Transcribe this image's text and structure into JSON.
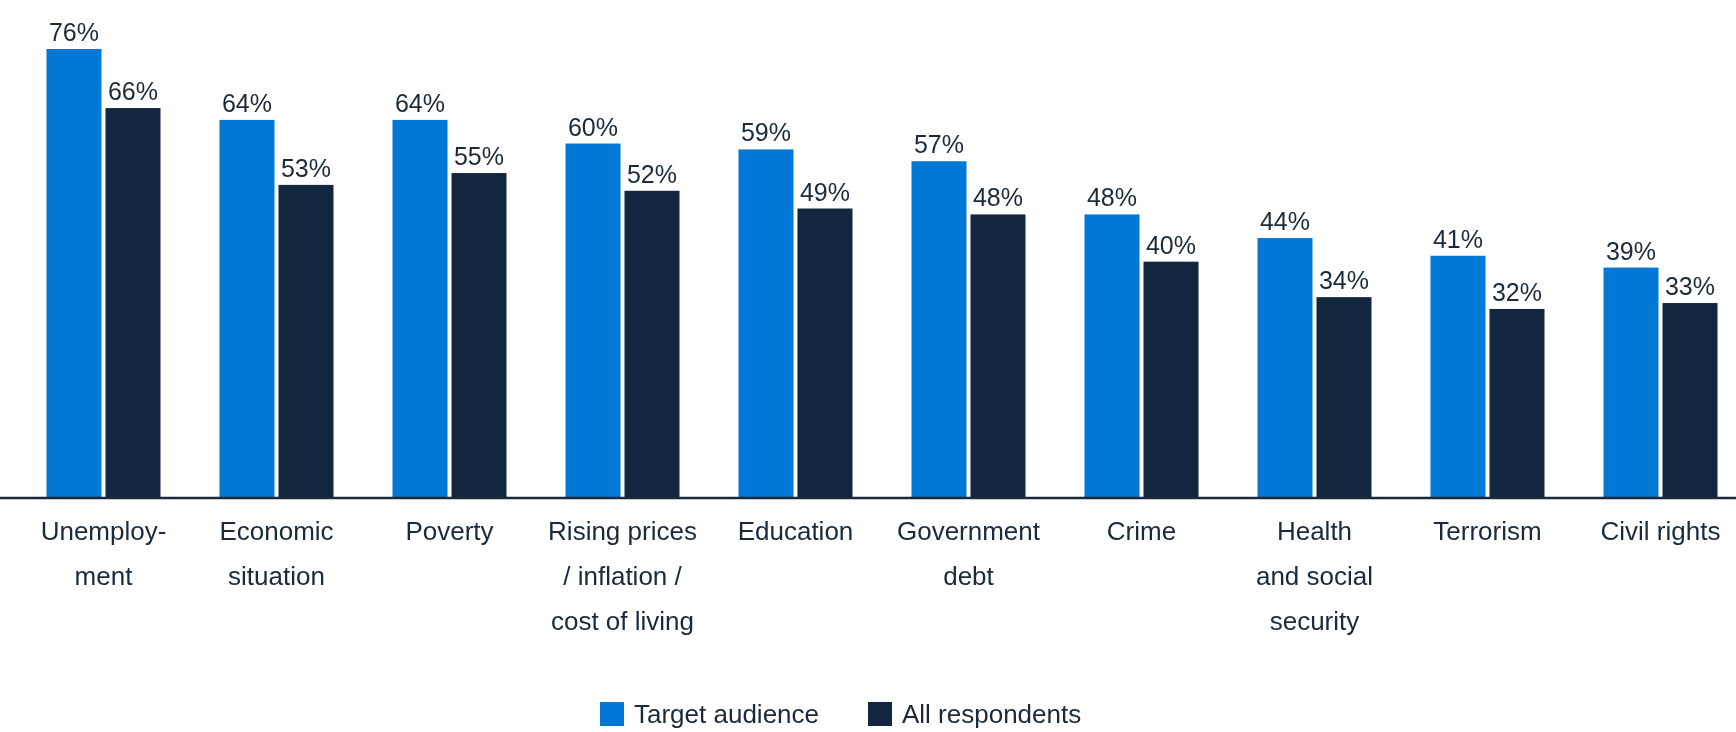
{
  "chart_data": {
    "type": "bar",
    "categories": [
      "Unemploy-\nment",
      "Economic\nsituation",
      "Poverty",
      "Rising prices\n/ inflation /\ncost of living",
      "Education",
      "Government\ndebt",
      "Crime",
      "Health\nand social\nsecurity",
      "Terrorism",
      "Civil rights"
    ],
    "series": [
      {
        "name": "Target audience",
        "color": "#0177d6",
        "values": [
          76,
          64,
          64,
          60,
          59,
          57,
          48,
          44,
          41,
          39
        ],
        "value_labels": [
          "76%",
          "64%",
          "64%",
          "60%",
          "59%",
          "57%",
          "48%",
          "44%",
          "41%",
          "39%"
        ]
      },
      {
        "name": "All respondents",
        "color": "#12263f",
        "values": [
          66,
          53,
          55,
          52,
          49,
          48,
          40,
          34,
          32,
          33
        ],
        "value_labels": [
          "66%",
          "53%",
          "55%",
          "52%",
          "49%",
          "48%",
          "40%",
          "34%",
          "32%",
          "33%"
        ]
      }
    ],
    "legend": "bottom"
  }
}
